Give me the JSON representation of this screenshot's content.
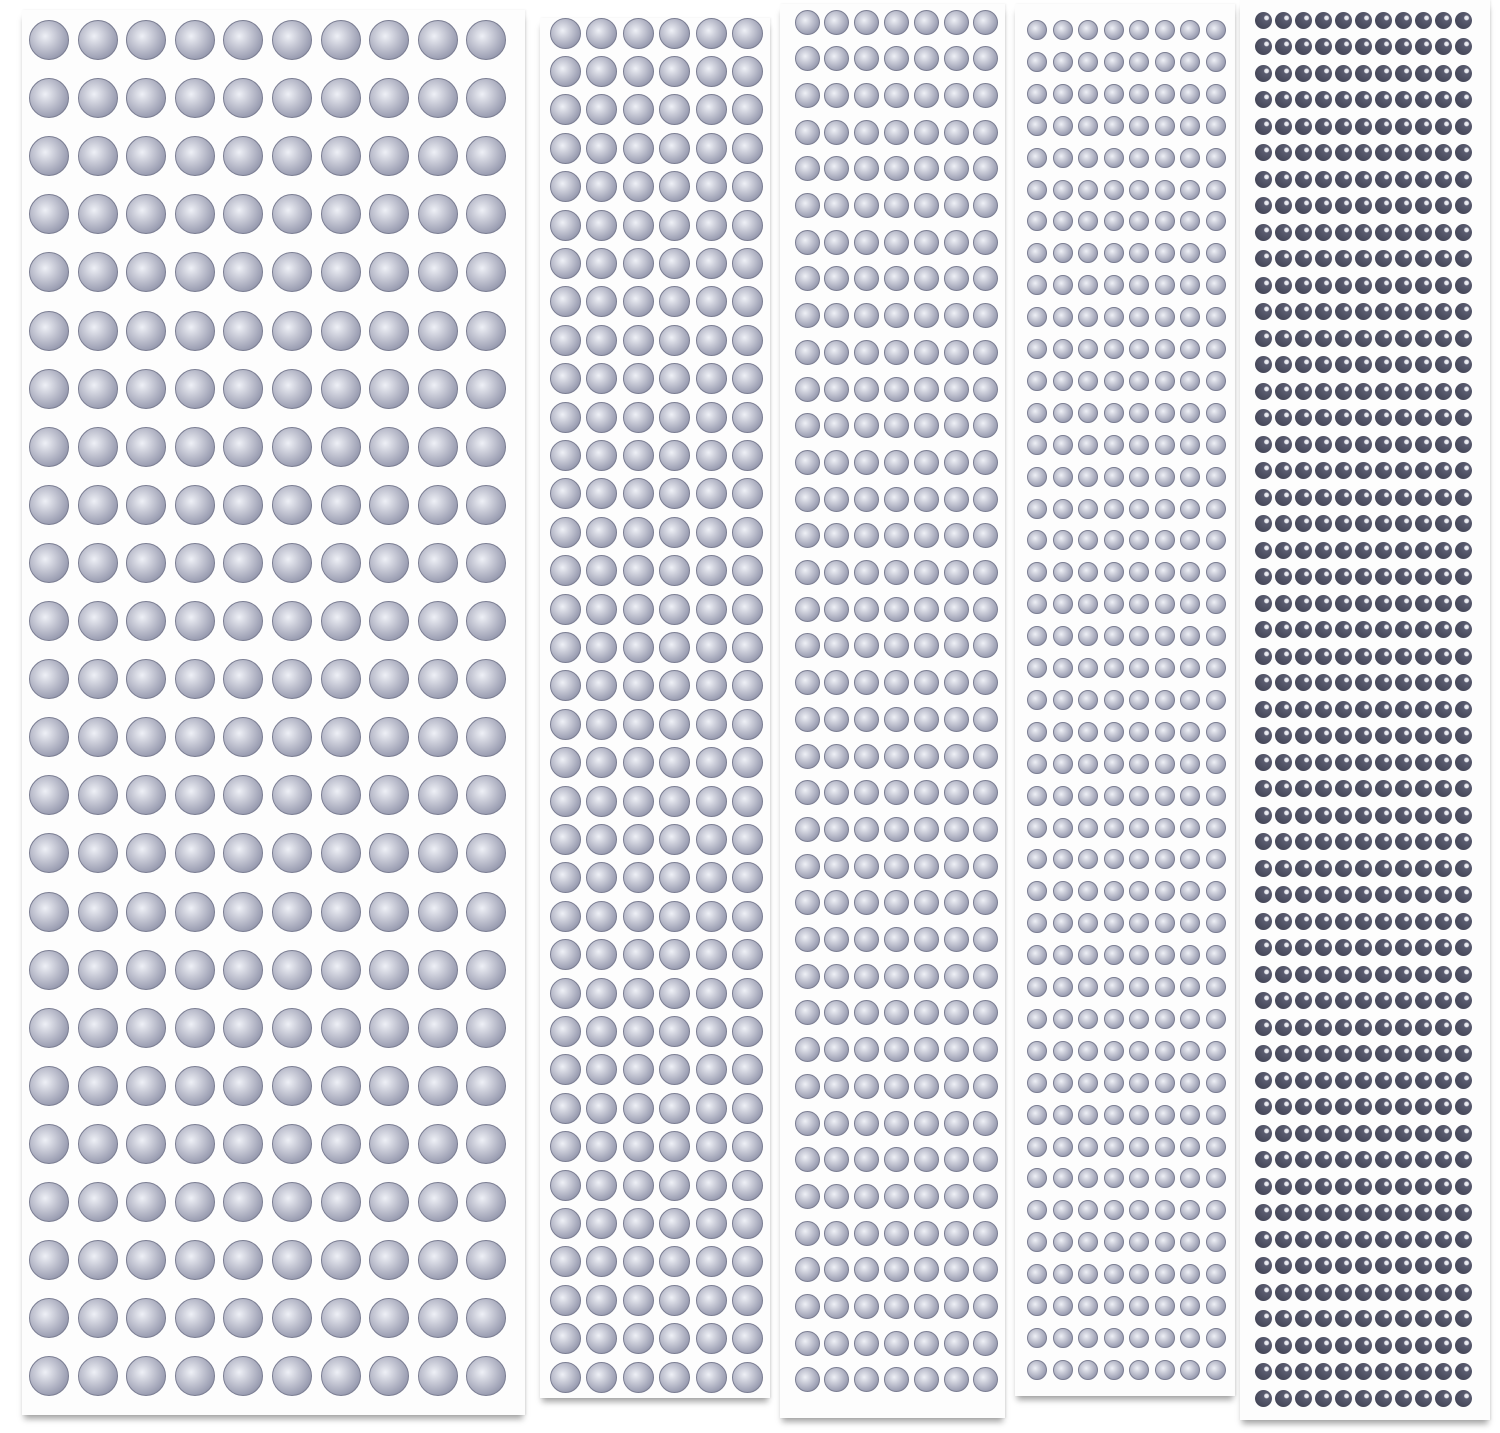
{
  "image": {
    "subject": "rhinestone-sticker-sheets",
    "background_color": "#ffffff",
    "sheets": [
      {
        "id": "sheet-1",
        "columns": 10,
        "rows": 24,
        "style": "clear",
        "gem_color": "#a9abbd"
      },
      {
        "id": "sheet-2",
        "columns": 6,
        "rows": 36,
        "style": "clear",
        "gem_color": "#a9abbd"
      },
      {
        "id": "sheet-3",
        "columns": 7,
        "rows": 38,
        "style": "clear",
        "gem_color": "#9c9fb3"
      },
      {
        "id": "sheet-4",
        "columns": 8,
        "rows": 43,
        "style": "clear",
        "gem_color": "#b4b6c4"
      },
      {
        "id": "sheet-5",
        "columns": 11,
        "rows": 53,
        "style": "dark",
        "gem_color": "#4a4c5e"
      }
    ]
  }
}
